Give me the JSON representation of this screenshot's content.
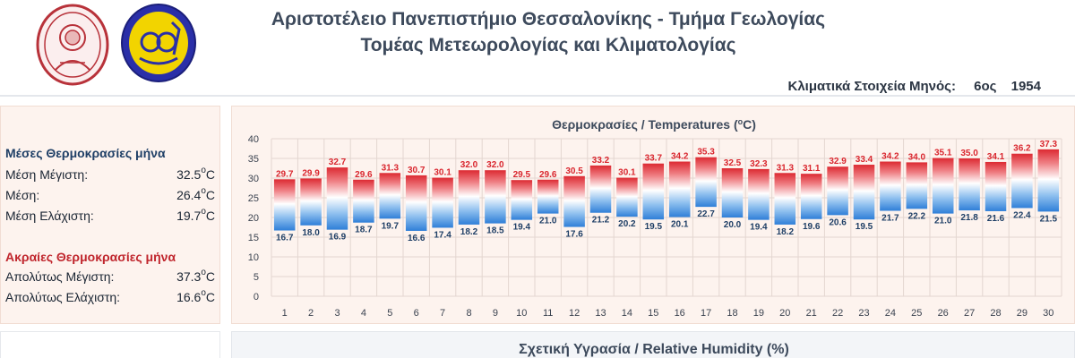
{
  "header": {
    "line1": "Αριστοτέλειο Πανεπιστήμιο Θεσσαλονίκης - Τμήμα Γεωλογίας",
    "line2": "Τομέας Μετεωρολογίας και Κλιματολογίας"
  },
  "logos": {
    "left": "university-seal",
    "right": "department-emblem"
  },
  "month_info": {
    "label": "Κλιματικά Στοιχεία Μηνός:",
    "month": "6ος",
    "year": "1954"
  },
  "mean_temps": {
    "title": "Μέσες Θερμοκρασίες μήνα",
    "rows": [
      {
        "label": "Μέση Μέγιστη:",
        "value": "32.5",
        "unit": "C"
      },
      {
        "label": "Μέση:",
        "value": "26.4",
        "unit": "C"
      },
      {
        "label": "Μέση Ελάχιστη:",
        "value": "19.7",
        "unit": "C"
      }
    ]
  },
  "extreme_temps": {
    "title": "Ακραίες Θερμοκρασίες μήνα",
    "rows": [
      {
        "label": "Απολύτως Μέγιστη:",
        "value": "37.3",
        "unit": "C"
      },
      {
        "label": "Απολύτως Ελάχιστη:",
        "value": "16.6",
        "unit": "C"
      }
    ]
  },
  "chart_data": {
    "type": "bar",
    "title": "Θερμοκρασίες / Temperatures (oC)",
    "title_main": "Θερμοκρασίες / Temperatures (",
    "title_sup": "o",
    "title_tail": "C)",
    "xlabel": "",
    "ylabel": "",
    "ylim": [
      0,
      40
    ],
    "yticks": [
      0,
      5,
      10,
      15,
      20,
      25,
      30,
      35,
      40
    ],
    "grid": true,
    "categories": [
      "1",
      "2",
      "3",
      "4",
      "5",
      "6",
      "7",
      "8",
      "9",
      "10",
      "11",
      "12",
      "13",
      "14",
      "15",
      "16",
      "17",
      "18",
      "19",
      "20",
      "21",
      "22",
      "23",
      "24",
      "25",
      "26",
      "27",
      "28",
      "29",
      "30"
    ],
    "series": [
      {
        "values": [
          29.7,
          29.9,
          32.7,
          29.6,
          31.3,
          30.7,
          30.1,
          32.0,
          32.0,
          29.5,
          29.6,
          30.5,
          33.2,
          30.1,
          33.7,
          34.2,
          35.3,
          32.5,
          32.3,
          31.3,
          31.1,
          32.9,
          33.4,
          34.2,
          34.0,
          35.1,
          35.0,
          34.1,
          36.2,
          37.3
        ]
      },
      {
        "values": [
          16.7,
          18.0,
          16.9,
          18.7,
          19.7,
          16.6,
          17.4,
          18.2,
          18.5,
          19.4,
          21.0,
          17.6,
          21.2,
          20.2,
          19.5,
          20.1,
          22.7,
          20.0,
          19.4,
          18.2,
          19.6,
          20.6,
          19.5,
          21.7,
          22.2,
          21.0,
          21.8,
          21.6,
          22.4,
          21.5
        ]
      }
    ],
    "colors": {
      "max": "#d9262e",
      "min": "#1f3f66",
      "bar_top": "#e02a32",
      "bar_bottom": "#2f7fd8",
      "grid": "#e3d6d0"
    }
  },
  "humidity_panel": {
    "title": "Σχετική Υγρασία / Relative Humidity (%)"
  }
}
